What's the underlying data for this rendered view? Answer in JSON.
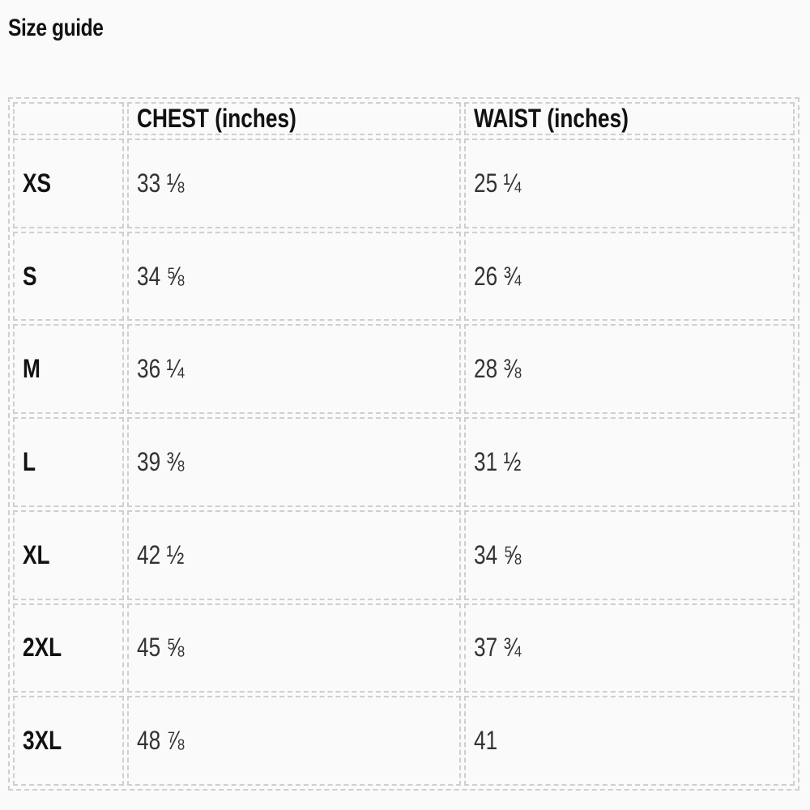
{
  "title": "Size guide",
  "table": {
    "headers": [
      "",
      "CHEST (inches)",
      "WAIST (inches)"
    ],
    "rows": [
      {
        "size": "XS",
        "chest": "33 ⅛",
        "waist": "25 ¼"
      },
      {
        "size": "S",
        "chest": "34 ⅝",
        "waist": "26 ¾"
      },
      {
        "size": "M",
        "chest": "36 ¼",
        "waist": "28 ⅜"
      },
      {
        "size": "L",
        "chest": "39 ⅜",
        "waist": "31 ½"
      },
      {
        "size": "XL",
        "chest": "42 ½",
        "waist": "34 ⅝"
      },
      {
        "size": "2XL",
        "chest": "45 ⅝",
        "waist": "37 ¾"
      },
      {
        "size": "3XL",
        "chest": "48 ⅞",
        "waist": "41"
      }
    ]
  }
}
